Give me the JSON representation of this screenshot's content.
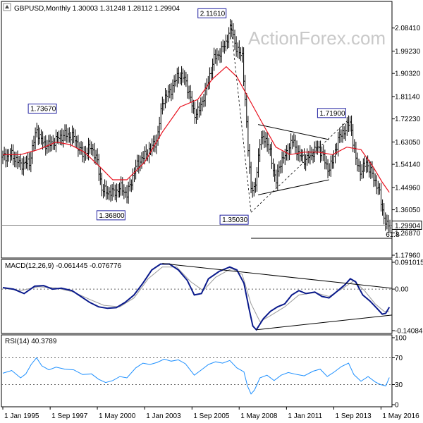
{
  "watermark": "ActionForex.com",
  "price_panel": {
    "header": "GBPUSD,Monthly  1.30003 1.31248 1.28112 1.29904",
    "y_ticks": [
      "2.08410",
      "1.99230",
      "1.90320",
      "1.81140",
      "1.72230",
      "1.63050",
      "1.54140",
      "1.44960",
      "1.36050",
      "1.26870",
      "1.17960"
    ],
    "current_price_label": "1.29904",
    "fib_label": "61.8",
    "annotations": [
      "2.11610",
      "1.73670",
      "1.36800",
      "1.35030",
      "1.71900"
    ]
  },
  "macd_panel": {
    "header": "MACD(12,26,9) -0.061445 -0.076776",
    "y_ticks": [
      "0.091015",
      "0.00",
      "-0.140843"
    ]
  },
  "rsi_panel": {
    "header": "RSI(14) 40.3789",
    "y_ticks": [
      "100",
      "70",
      "30",
      "0"
    ]
  },
  "x_ticks": [
    "1 Jan 1995",
    "1 Sep 1997",
    "1 May 2000",
    "1 Jan 2003",
    "1 Sep 2005",
    "1 May 2008",
    "1 Jan 2011",
    "1 Sep 2013",
    "1 May 2016"
  ],
  "colors": {
    "price_bars": "#000000",
    "moving_average": "#e8101d",
    "macd_line": "#0a1a8c",
    "macd_signal": "#9a9a9a",
    "rsi_line": "#1e90ff",
    "label_box_border": "#2020a0"
  },
  "chart_data": {
    "type": "line",
    "title": "GBPUSD,Monthly",
    "ohlc_last": {
      "open": 1.30003,
      "high": 1.31248,
      "low": 1.28112,
      "close": 1.29904
    },
    "x_range": [
      "1995-01",
      "2016-10"
    ],
    "price": {
      "ylim": [
        1.1796,
        2.1395
      ],
      "close_series": [
        [
          1995.0,
          1.57
        ],
        [
          1995.5,
          1.58
        ],
        [
          1996.0,
          1.54
        ],
        [
          1996.5,
          1.55
        ],
        [
          1996.9,
          1.68
        ],
        [
          1997.3,
          1.62
        ],
        [
          1997.7,
          1.62
        ],
        [
          1998.0,
          1.64
        ],
        [
          1998.5,
          1.66
        ],
        [
          1999.0,
          1.65
        ],
        [
          1999.5,
          1.58
        ],
        [
          2000.0,
          1.61
        ],
        [
          2000.3,
          1.56
        ],
        [
          2000.6,
          1.44
        ],
        [
          2000.9,
          1.43
        ],
        [
          2001.3,
          1.43
        ],
        [
          2001.7,
          1.45
        ],
        [
          2002.0,
          1.42
        ],
        [
          2002.5,
          1.53
        ],
        [
          2002.9,
          1.57
        ],
        [
          2003.3,
          1.6
        ],
        [
          2003.7,
          1.64
        ],
        [
          2004.0,
          1.79
        ],
        [
          2004.5,
          1.84
        ],
        [
          2004.9,
          1.9
        ],
        [
          2005.3,
          1.88
        ],
        [
          2005.8,
          1.74
        ],
        [
          2006.1,
          1.76
        ],
        [
          2006.5,
          1.85
        ],
        [
          2006.9,
          1.96
        ],
        [
          2007.3,
          1.99
        ],
        [
          2007.6,
          2.03
        ],
        [
          2007.9,
          2.09
        ],
        [
          2008.2,
          1.99
        ],
        [
          2008.5,
          1.98
        ],
        [
          2008.8,
          1.64
        ],
        [
          2009.0,
          1.45
        ],
        [
          2009.2,
          1.43
        ],
        [
          2009.5,
          1.63
        ],
        [
          2009.8,
          1.65
        ],
        [
          2010.1,
          1.58
        ],
        [
          2010.4,
          1.47
        ],
        [
          2010.7,
          1.56
        ],
        [
          2011.0,
          1.58
        ],
        [
          2011.3,
          1.64
        ],
        [
          2011.7,
          1.58
        ],
        [
          2012.0,
          1.56
        ],
        [
          2012.4,
          1.58
        ],
        [
          2012.7,
          1.61
        ],
        [
          2013.0,
          1.59
        ],
        [
          2013.3,
          1.52
        ],
        [
          2013.6,
          1.55
        ],
        [
          2013.9,
          1.64
        ],
        [
          2014.3,
          1.68
        ],
        [
          2014.6,
          1.71
        ],
        [
          2014.9,
          1.56
        ],
        [
          2015.2,
          1.51
        ],
        [
          2015.5,
          1.55
        ],
        [
          2015.9,
          1.49
        ],
        [
          2016.2,
          1.44
        ],
        [
          2016.5,
          1.33
        ],
        [
          2016.7,
          1.29
        ],
        [
          2016.8,
          1.299
        ]
      ],
      "moving_average": [
        [
          1995.0,
          1.58
        ],
        [
          1996.0,
          1.58
        ],
        [
          1997.0,
          1.6
        ],
        [
          1998.0,
          1.63
        ],
        [
          1998.8,
          1.62
        ],
        [
          1999.6,
          1.59
        ],
        [
          2000.5,
          1.53
        ],
        [
          2001.2,
          1.48
        ],
        [
          2002.0,
          1.48
        ],
        [
          2003.0,
          1.55
        ],
        [
          2004.0,
          1.67
        ],
        [
          2005.0,
          1.77
        ],
        [
          2006.0,
          1.8
        ],
        [
          2006.8,
          1.88
        ],
        [
          2007.6,
          1.93
        ],
        [
          2008.2,
          1.89
        ],
        [
          2008.9,
          1.8
        ],
        [
          2009.6,
          1.71
        ],
        [
          2010.4,
          1.61
        ],
        [
          2011.2,
          1.58
        ],
        [
          2012.0,
          1.59
        ],
        [
          2012.8,
          1.59
        ],
        [
          2013.6,
          1.58
        ],
        [
          2014.4,
          1.61
        ],
        [
          2015.2,
          1.6
        ],
        [
          2015.9,
          1.53
        ],
        [
          2016.4,
          1.47
        ],
        [
          2016.8,
          1.43
        ]
      ],
      "labels": [
        {
          "date": "2007-11",
          "value": 2.1161
        },
        {
          "date": "1996-11",
          "value": 1.7367
        },
        {
          "date": "2001-06",
          "value": 1.368
        },
        {
          "date": "2009-01",
          "value": 1.3503
        },
        {
          "date": "2014-07",
          "value": 1.719
        }
      ],
      "current": 1.29904,
      "fib_61_8": 1.247
    },
    "macd": {
      "ylim": [
        -0.140843,
        0.091015
      ],
      "macd_series": [
        [
          1995.0,
          0.005
        ],
        [
          1995.6,
          0.0
        ],
        [
          1996.2,
          -0.015
        ],
        [
          1996.8,
          0.01
        ],
        [
          1997.3,
          0.012
        ],
        [
          1997.8,
          0.0
        ],
        [
          1998.3,
          0.003
        ],
        [
          1998.9,
          -0.005
        ],
        [
          1999.4,
          -0.025
        ],
        [
          1999.9,
          -0.045
        ],
        [
          2000.4,
          -0.06
        ],
        [
          2000.9,
          -0.065
        ],
        [
          2001.4,
          -0.063
        ],
        [
          2001.9,
          -0.045
        ],
        [
          2002.4,
          -0.02
        ],
        [
          2002.9,
          0.02
        ],
        [
          2003.4,
          0.065
        ],
        [
          2003.9,
          0.085
        ],
        [
          2004.4,
          0.085
        ],
        [
          2004.9,
          0.065
        ],
        [
          2005.4,
          0.03
        ],
        [
          2005.8,
          -0.02
        ],
        [
          2006.2,
          -0.015
        ],
        [
          2006.6,
          0.035
        ],
        [
          2007.2,
          0.06
        ],
        [
          2007.8,
          0.075
        ],
        [
          2008.2,
          0.065
        ],
        [
          2008.6,
          0.02
        ],
        [
          2008.9,
          -0.07
        ],
        [
          2009.1,
          -0.125
        ],
        [
          2009.3,
          -0.138
        ],
        [
          2009.7,
          -0.1
        ],
        [
          2010.1,
          -0.075
        ],
        [
          2010.5,
          -0.06
        ],
        [
          2010.9,
          -0.05
        ],
        [
          2011.3,
          -0.02
        ],
        [
          2011.7,
          -0.005
        ],
        [
          2012.1,
          -0.015
        ],
        [
          2012.6,
          -0.01
        ],
        [
          2013.0,
          -0.025
        ],
        [
          2013.4,
          -0.03
        ],
        [
          2013.8,
          -0.01
        ],
        [
          2014.3,
          0.015
        ],
        [
          2014.6,
          0.035
        ],
        [
          2014.9,
          0.025
        ],
        [
          2015.3,
          -0.02
        ],
        [
          2015.7,
          -0.04
        ],
        [
          2016.1,
          -0.065
        ],
        [
          2016.4,
          -0.085
        ],
        [
          2016.6,
          -0.082
        ],
        [
          2016.8,
          -0.061445
        ]
      ],
      "signal_series": [
        [
          1995.0,
          0.003
        ],
        [
          1996.0,
          -0.005
        ],
        [
          1997.0,
          0.008
        ],
        [
          1998.0,
          0.004
        ],
        [
          1999.0,
          -0.01
        ],
        [
          1999.9,
          -0.035
        ],
        [
          2000.7,
          -0.055
        ],
        [
          2001.6,
          -0.06
        ],
        [
          2002.4,
          -0.03
        ],
        [
          2003.2,
          0.035
        ],
        [
          2004.0,
          0.075
        ],
        [
          2004.8,
          0.075
        ],
        [
          2005.6,
          0.025
        ],
        [
          2006.3,
          -0.005
        ],
        [
          2007.0,
          0.04
        ],
        [
          2007.9,
          0.07
        ],
        [
          2008.5,
          0.05
        ],
        [
          2009.0,
          -0.05
        ],
        [
          2009.5,
          -0.11
        ],
        [
          2010.1,
          -0.09
        ],
        [
          2010.9,
          -0.06
        ],
        [
          2011.7,
          -0.02
        ],
        [
          2012.6,
          -0.012
        ],
        [
          2013.4,
          -0.025
        ],
        [
          2014.1,
          0.0
        ],
        [
          2014.8,
          0.028
        ],
        [
          2015.4,
          -0.005
        ],
        [
          2016.0,
          -0.05
        ],
        [
          2016.5,
          -0.075
        ],
        [
          2016.8,
          -0.076776
        ]
      ]
    },
    "rsi": {
      "ylim": [
        0,
        100
      ],
      "series": [
        [
          1995.0,
          47
        ],
        [
          1995.5,
          51
        ],
        [
          1996.0,
          40
        ],
        [
          1996.3,
          46
        ],
        [
          1996.6,
          60
        ],
        [
          1996.9,
          70
        ],
        [
          1997.2,
          58
        ],
        [
          1997.6,
          52
        ],
        [
          1998.0,
          56
        ],
        [
          1998.5,
          53
        ],
        [
          1999.0,
          52
        ],
        [
          1999.5,
          45
        ],
        [
          2000.0,
          46
        ],
        [
          2000.4,
          38
        ],
        [
          2000.8,
          33
        ],
        [
          2001.2,
          36
        ],
        [
          2001.6,
          42
        ],
        [
          2002.0,
          40
        ],
        [
          2002.5,
          55
        ],
        [
          2002.9,
          62
        ],
        [
          2003.3,
          60
        ],
        [
          2003.7,
          63
        ],
        [
          2004.1,
          68
        ],
        [
          2004.5,
          65
        ],
        [
          2004.9,
          67
        ],
        [
          2005.3,
          61
        ],
        [
          2005.8,
          44
        ],
        [
          2006.2,
          52
        ],
        [
          2006.6,
          60
        ],
        [
          2007.0,
          64
        ],
        [
          2007.4,
          62
        ],
        [
          2007.8,
          66
        ],
        [
          2008.2,
          55
        ],
        [
          2008.6,
          49
        ],
        [
          2008.8,
          28
        ],
        [
          2009.0,
          16
        ],
        [
          2009.2,
          22
        ],
        [
          2009.5,
          40
        ],
        [
          2009.9,
          44
        ],
        [
          2010.3,
          36
        ],
        [
          2010.7,
          44
        ],
        [
          2011.1,
          48
        ],
        [
          2011.6,
          45
        ],
        [
          2012.0,
          43
        ],
        [
          2012.5,
          50
        ],
        [
          2012.9,
          53
        ],
        [
          2013.3,
          42
        ],
        [
          2013.7,
          49
        ],
        [
          2014.1,
          57
        ],
        [
          2014.5,
          62
        ],
        [
          2014.8,
          45
        ],
        [
          2015.2,
          35
        ],
        [
          2015.6,
          42
        ],
        [
          2016.0,
          34
        ],
        [
          2016.3,
          30
        ],
        [
          2016.6,
          28
        ],
        [
          2016.8,
          40.3789
        ]
      ],
      "levels": [
        70,
        30
      ]
    }
  }
}
